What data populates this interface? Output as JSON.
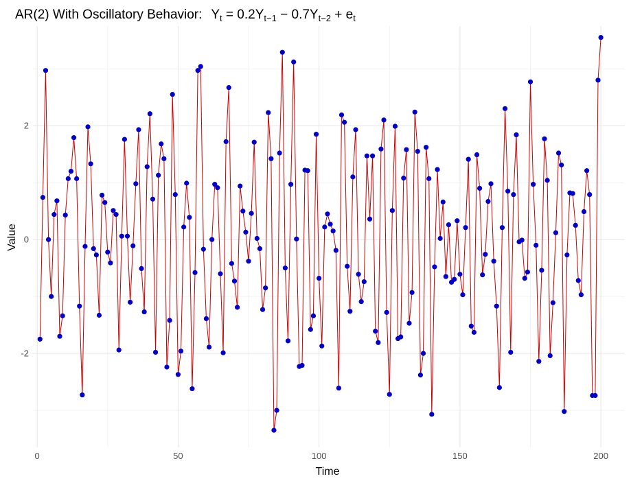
{
  "chart_data": {
    "type": "line",
    "title_main": "AR(2) With Oscillatory Behavior:",
    "title_formula": {
      "lhs": "Y",
      "lhs_sub": "t",
      "eq": " = 0.2Y",
      "sub1": "t−1",
      "mid": " − 0.7Y",
      "sub2": "t−2",
      "tail": " + e",
      "sub3": "t"
    },
    "xlabel": "Time",
    "ylabel": "Value",
    "xlim": [
      -1.5,
      208.5
    ],
    "ylim": [
      -3.65,
      3.75
    ],
    "x_ticks": [
      0,
      50,
      100,
      150,
      200
    ],
    "x_tick_labels": [
      "0",
      "50",
      "100",
      "150",
      "200"
    ],
    "y_ticks": [
      -2,
      0,
      2
    ],
    "y_tick_labels": [
      "-2",
      "0",
      "2"
    ],
    "grid": true,
    "line_color": "#cc0000",
    "point_color": "#0000cc",
    "x": [
      1,
      2,
      3,
      4,
      5,
      6,
      7,
      8,
      9,
      10,
      11,
      12,
      13,
      14,
      15,
      16,
      17,
      18,
      19,
      20,
      21,
      22,
      23,
      24,
      25,
      26,
      27,
      28,
      29,
      30,
      31,
      32,
      33,
      34,
      35,
      36,
      37,
      38,
      39,
      40,
      41,
      42,
      43,
      44,
      45,
      46,
      47,
      48,
      49,
      50,
      51,
      52,
      53,
      54,
      55,
      56,
      57,
      58,
      59,
      60,
      61,
      62,
      63,
      64,
      65,
      66,
      67,
      68,
      69,
      70,
      71,
      72,
      73,
      74,
      75,
      76,
      77,
      78,
      79,
      80,
      81,
      82,
      83,
      84,
      85,
      86,
      87,
      88,
      89,
      90,
      91,
      92,
      93,
      94,
      95,
      96,
      97,
      98,
      99,
      100,
      101,
      102,
      103,
      104,
      105,
      106,
      107,
      108,
      109,
      110,
      111,
      112,
      113,
      114,
      115,
      116,
      117,
      118,
      119,
      120,
      121,
      122,
      123,
      124,
      125,
      126,
      127,
      128,
      129,
      130,
      131,
      132,
      133,
      134,
      135,
      136,
      137,
      138,
      139,
      140,
      141,
      142,
      143,
      144,
      145,
      146,
      147,
      148,
      149,
      150,
      151,
      152,
      153,
      154,
      155,
      156,
      157,
      158,
      159,
      160,
      161,
      162,
      163,
      164,
      165,
      166,
      167,
      168,
      169,
      170,
      171,
      172,
      173,
      174,
      175,
      176,
      177,
      178,
      179,
      180,
      181,
      182,
      183,
      184,
      185,
      186,
      187,
      188,
      189,
      190,
      191,
      192,
      193,
      194,
      195,
      196,
      197,
      198,
      199,
      200
    ],
    "y": [
      -1.75,
      0.74,
      2.97,
      0.0,
      -1.0,
      0.44,
      0.68,
      -1.7,
      -1.34,
      0.43,
      1.07,
      1.2,
      1.79,
      1.07,
      -1.17,
      -2.73,
      -0.12,
      1.98,
      1.33,
      -0.16,
      -0.27,
      -1.33,
      0.78,
      0.65,
      -0.22,
      -0.41,
      0.51,
      0.44,
      -1.94,
      0.06,
      1.76,
      0.06,
      -1.1,
      -0.11,
      0.98,
      1.93,
      -0.51,
      -1.27,
      1.28,
      2.21,
      0.71,
      -1.98,
      1.13,
      1.68,
      1.42,
      -2.24,
      -1.42,
      2.55,
      0.79,
      -2.37,
      -1.96,
      0.22,
      0.99,
      0.39,
      -2.62,
      -0.58,
      2.97,
      3.04,
      -0.17,
      -1.39,
      -1.89,
      0.0,
      0.97,
      0.91,
      -0.6,
      -1.99,
      1.72,
      2.67,
      -0.42,
      -0.73,
      -1.19,
      0.94,
      0.5,
      0.13,
      -0.38,
      0.46,
      1.71,
      0.02,
      -0.16,
      -1.23,
      -0.85,
      2.23,
      1.42,
      -3.35,
      -3.0,
      1.52,
      3.29,
      -0.5,
      -1.78,
      0.97,
      3.12,
      0.01,
      -2.23,
      -2.21,
      1.22,
      1.21,
      -1.58,
      -1.34,
      1.85,
      -0.68,
      -1.87,
      0.22,
      0.45,
      0.27,
      0.15,
      -0.19,
      -2.61,
      2.19,
      2.06,
      -0.47,
      -1.26,
      1.1,
      1.93,
      -0.61,
      -1.09,
      -0.74,
      1.47,
      0.36,
      1.47,
      -1.61,
      -1.81,
      1.59,
      2.1,
      -1.28,
      -2.72,
      0.51,
      1.99,
      -1.74,
      -1.71,
      1.08,
      1.58,
      -1.47,
      -0.93,
      2.24,
      1.55,
      -2.38,
      -2.0,
      1.62,
      1.07,
      -3.07,
      -0.48,
      1.23,
      0.02,
      0.66,
      -0.65,
      0.26,
      -0.75,
      -0.7,
      0.33,
      -0.61,
      -0.97,
      0.21,
      1.41,
      -1.52,
      -1.63,
      1.49,
      0.9,
      -0.62,
      -0.26,
      0.67,
      0.98,
      -0.38,
      -1.17,
      -2.6,
      0.21,
      2.3,
      0.85,
      -1.98,
      0.79,
      1.84,
      -0.04,
      -0.01,
      -0.68,
      -0.57,
      2.77,
      0.97,
      -0.1,
      -2.14,
      -0.54,
      1.77,
      1.04,
      -2.04,
      -1.11,
      0.12,
      1.52,
      1.31,
      -3.02,
      -0.27,
      0.82,
      0.81,
      0.25,
      -0.72,
      -0.97,
      0.49,
      1.21,
      0.79,
      -2.74,
      -2.74,
      2.8,
      3.55
    ]
  }
}
